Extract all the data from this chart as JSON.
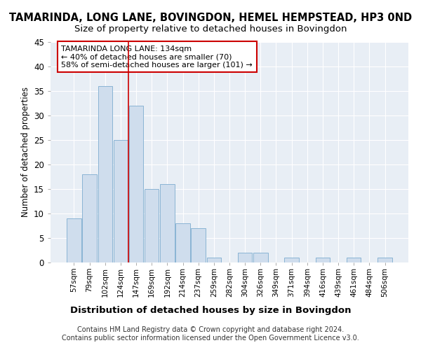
{
  "title": "TAMARINDA, LONG LANE, BOVINGDON, HEMEL HEMPSTEAD, HP3 0ND",
  "subtitle": "Size of property relative to detached houses in Bovingdon",
  "xlabel": "Distribution of detached houses by size in Bovingdon",
  "ylabel": "Number of detached properties",
  "categories": [
    "57sqm",
    "79sqm",
    "102sqm",
    "124sqm",
    "147sqm",
    "169sqm",
    "192sqm",
    "214sqm",
    "237sqm",
    "259sqm",
    "282sqm",
    "304sqm",
    "326sqm",
    "349sqm",
    "371sqm",
    "394sqm",
    "416sqm",
    "439sqm",
    "461sqm",
    "484sqm",
    "506sqm"
  ],
  "values": [
    9,
    18,
    36,
    25,
    32,
    15,
    16,
    8,
    7,
    1,
    0,
    2,
    2,
    0,
    1,
    0,
    1,
    0,
    1,
    0,
    1
  ],
  "bar_color": "#cfdded",
  "bar_edge_color": "#8ab4d4",
  "reference_line_x": 3.5,
  "reference_line_color": "#cc0000",
  "annotation_text": "TAMARINDA LONG LANE: 134sqm\n← 40% of detached houses are smaller (70)\n58% of semi-detached houses are larger (101) →",
  "annotation_box_color": "white",
  "annotation_box_edge_color": "#cc0000",
  "ylim": [
    0,
    45
  ],
  "yticks": [
    0,
    5,
    10,
    15,
    20,
    25,
    30,
    35,
    40,
    45
  ],
  "fig_background_color": "#ffffff",
  "plot_background_color": "#e8eef5",
  "grid_color": "#ffffff",
  "footer_line1": "Contains HM Land Registry data © Crown copyright and database right 2024.",
  "footer_line2": "Contains public sector information licensed under the Open Government Licence v3.0."
}
